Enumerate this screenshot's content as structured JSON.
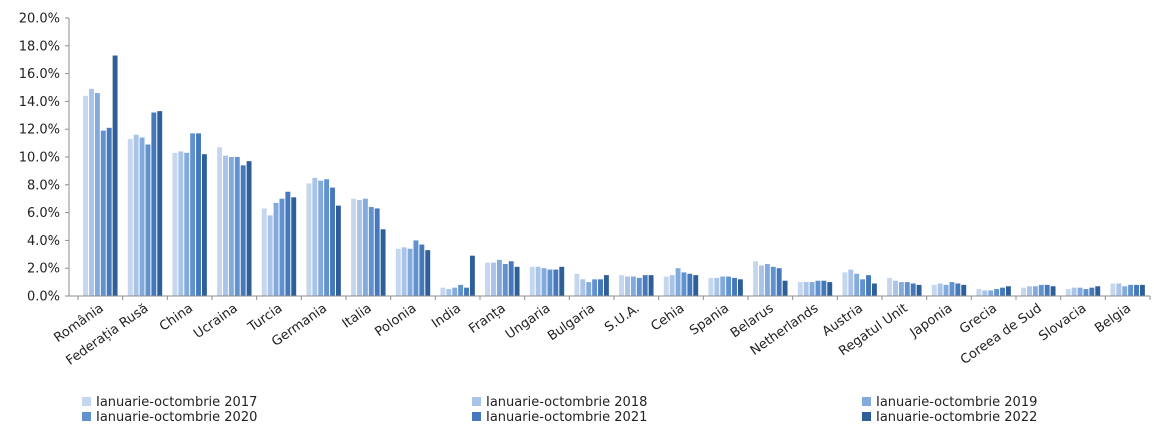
{
  "chart_data": {
    "type": "bar",
    "title": "",
    "xlabel": "",
    "ylabel": "",
    "ylim": [
      0,
      20
    ],
    "yticks": [
      "0.0%",
      "2.0%",
      "4.0%",
      "6.0%",
      "8.0%",
      "10.0%",
      "12.0%",
      "14.0%",
      "16.0%",
      "18.0%",
      "20.0%"
    ],
    "grid": false,
    "legend_position": "bottom",
    "categories": [
      "România",
      "Federația Rusă",
      "China",
      "Ucraina",
      "Turcia",
      "Germania",
      "Italia",
      "Polonia",
      "India",
      "Franța",
      "Ungaria",
      "Bulgaria",
      "S.U.A.",
      "Cehia",
      "Spania",
      "Belarus",
      "Netherlands",
      "Austria",
      "Regatul Unit",
      "Japonia",
      "Grecia",
      "Coreea de Sud",
      "Slovacia",
      "Belgia"
    ],
    "series": [
      {
        "name": "Ianuarie-octombrie 2017",
        "color": "#c5d7ee",
        "values": [
          14.4,
          11.3,
          10.3,
          10.7,
          6.3,
          8.1,
          7.0,
          3.4,
          0.6,
          2.4,
          2.1,
          1.6,
          1.5,
          1.4,
          1.3,
          2.5,
          1.0,
          1.7,
          1.3,
          0.8,
          0.5,
          0.6,
          0.5,
          0.9
        ]
      },
      {
        "name": "Ianuarie-octombrie 2018",
        "color": "#a9c4e8",
        "values": [
          14.9,
          11.6,
          10.4,
          10.1,
          5.8,
          8.5,
          6.9,
          3.5,
          0.5,
          2.4,
          2.1,
          1.2,
          1.4,
          1.5,
          1.3,
          2.2,
          1.0,
          1.9,
          1.1,
          0.9,
          0.4,
          0.7,
          0.6,
          0.9
        ]
      },
      {
        "name": "Ianuarie-octombrie 2019",
        "color": "#82aadc",
        "values": [
          14.6,
          11.4,
          10.3,
          10.0,
          6.7,
          8.3,
          7.0,
          3.4,
          0.6,
          2.6,
          2.0,
          1.0,
          1.4,
          2.0,
          1.4,
          2.3,
          1.0,
          1.6,
          1.0,
          0.8,
          0.4,
          0.7,
          0.6,
          0.7
        ]
      },
      {
        "name": "Ianuarie-octombrie 2020",
        "color": "#5f92cf",
        "values": [
          11.9,
          10.9,
          11.7,
          10.0,
          7.0,
          8.4,
          6.4,
          4.0,
          0.8,
          2.3,
          1.9,
          1.2,
          1.3,
          1.7,
          1.4,
          2.1,
          1.1,
          1.2,
          1.0,
          1.0,
          0.5,
          0.8,
          0.5,
          0.8
        ]
      },
      {
        "name": "Ianuarie-octombrie 2021",
        "color": "#4579bb",
        "values": [
          12.1,
          13.2,
          11.7,
          9.4,
          7.5,
          7.8,
          6.3,
          3.7,
          0.6,
          2.5,
          1.9,
          1.2,
          1.5,
          1.6,
          1.3,
          2.0,
          1.1,
          1.5,
          0.9,
          0.9,
          0.6,
          0.8,
          0.6,
          0.8
        ]
      },
      {
        "name": "Ianuarie-octombrie 2022",
        "color": "#2f5f98",
        "values": [
          17.3,
          13.3,
          10.2,
          9.7,
          7.1,
          6.5,
          4.8,
          3.3,
          2.9,
          2.1,
          2.1,
          1.5,
          1.5,
          1.5,
          1.2,
          1.1,
          1.0,
          0.9,
          0.8,
          0.8,
          0.7,
          0.7,
          0.7,
          0.8
        ]
      }
    ]
  }
}
